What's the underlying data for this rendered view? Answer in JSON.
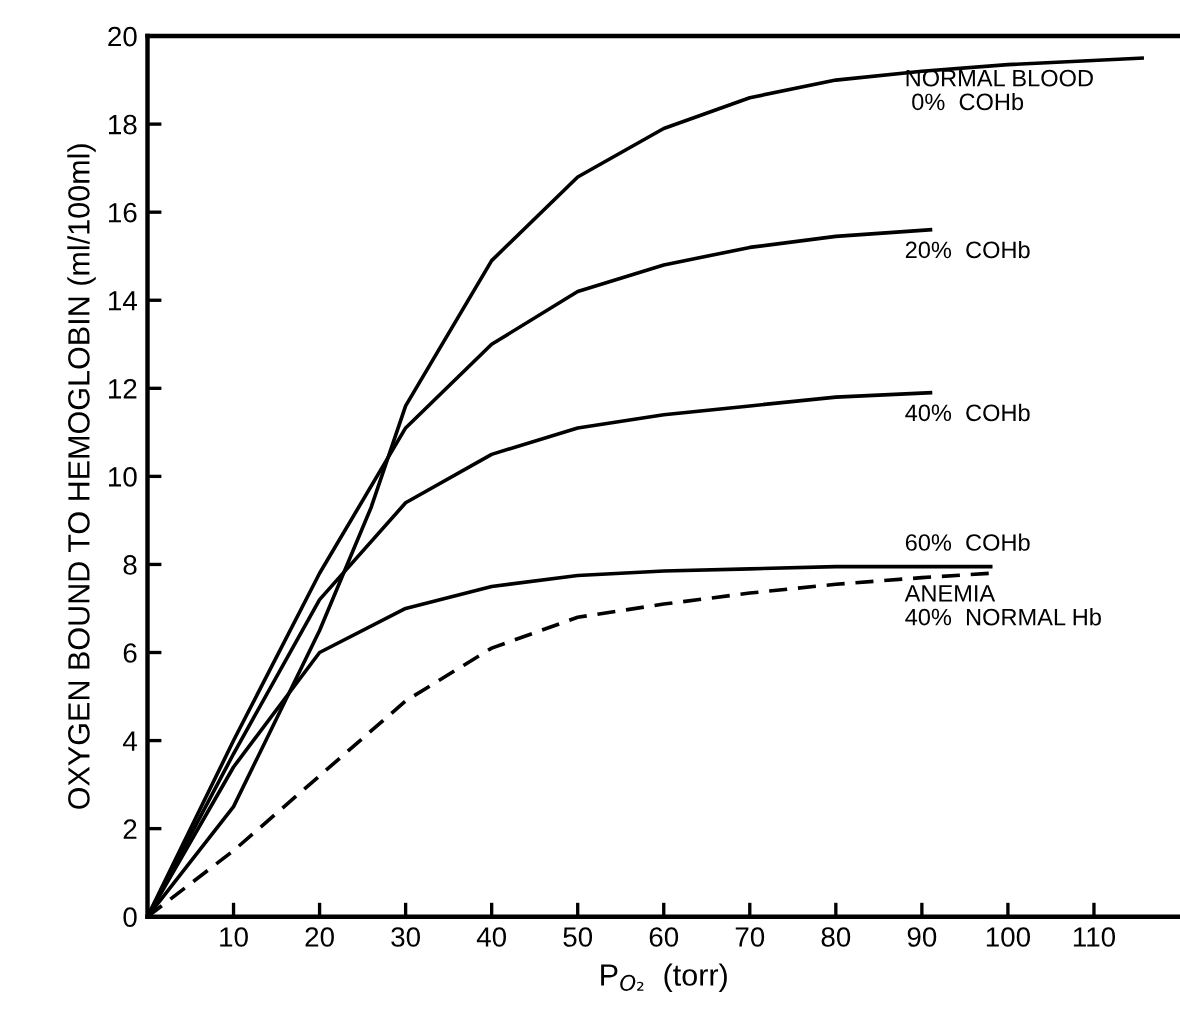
{
  "chart_data": {
    "type": "line",
    "xlabel": "P$_{O₂}$  (torr)",
    "ylabel": "OXYGEN BOUND TO HEMOGLOBIN (ml/100ml)",
    "xlim": [
      0,
      120
    ],
    "ylim": [
      0,
      20
    ],
    "xticks": [
      10,
      20,
      30,
      40,
      50,
      60,
      70,
      80,
      90,
      100,
      110
    ],
    "yticks": [
      0,
      2,
      4,
      6,
      8,
      10,
      12,
      14,
      16,
      18,
      20
    ],
    "grid": false,
    "legend": false,
    "marker": "none",
    "line_style": "solid",
    "series": [
      {
        "name": "NORMAL BLOOD\n 0%  COHb",
        "color": "#000000",
        "x": [
          0,
          10,
          20,
          26,
          30,
          40,
          50,
          60,
          70,
          80,
          90,
          100,
          115.6
        ],
        "values": [
          0,
          2.5,
          6.5,
          9.3,
          11.6,
          14.9,
          16.8,
          17.9,
          18.6,
          19.0,
          19.2,
          19.35,
          19.5
        ]
      },
      {
        "name": "20%  COHb",
        "color": "#000000",
        "x": [
          0,
          10,
          20,
          30,
          40,
          50,
          60,
          70,
          80,
          91
        ],
        "values": [
          0,
          4,
          7.8,
          11.1,
          13.0,
          14.2,
          14.8,
          15.2,
          15.45,
          15.6
        ]
      },
      {
        "name": "40%  COHb",
        "color": "#000000",
        "x": [
          0,
          10,
          20,
          30,
          40,
          50,
          60,
          70,
          80,
          91
        ],
        "values": [
          0,
          3.7,
          7.2,
          9.4,
          10.5,
          11.1,
          11.4,
          11.6,
          11.8,
          11.9
        ]
      },
      {
        "name": "60%  COHb",
        "color": "#000000",
        "x": [
          0,
          10,
          20,
          30,
          40,
          50,
          60,
          70,
          80,
          98
        ],
        "values": [
          0,
          3.4,
          6.0,
          7.0,
          7.5,
          7.75,
          7.85,
          7.9,
          7.95,
          7.95
        ]
      },
      {
        "name": "ANEMIA\n40%  NORMAL Hb",
        "color": "#000000",
        "line_style": "dashed",
        "x": [
          0,
          10,
          20,
          30,
          40,
          50,
          60,
          70,
          80,
          90,
          98
        ],
        "values": [
          0,
          1.5,
          3.2,
          4.9,
          6.1,
          6.8,
          7.1,
          7.35,
          7.55,
          7.7,
          7.8
        ]
      }
    ]
  }
}
